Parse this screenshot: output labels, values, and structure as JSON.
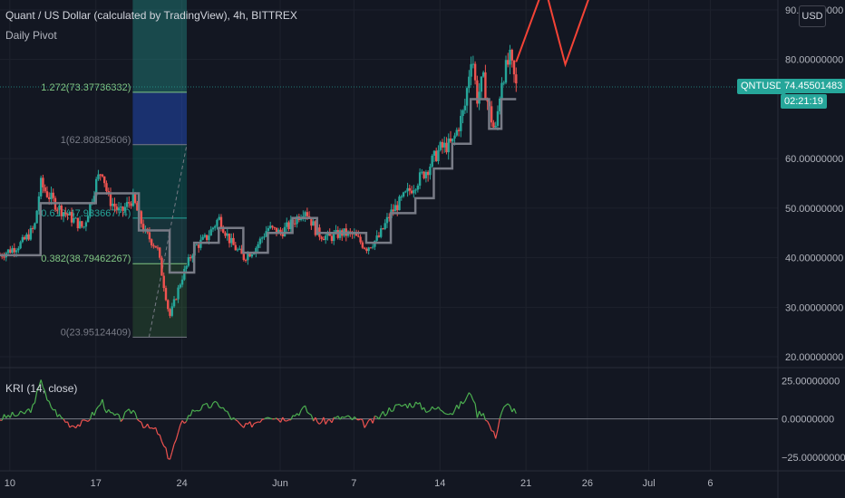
{
  "header": {
    "title": "Quant / US Dollar (calculated by TradingView), 4h, BITTREX",
    "pivot_label": "Daily Pivot",
    "indicator_label": "KRI (14, close)",
    "currency_button": "USD"
  },
  "colors": {
    "background": "#131722",
    "grid": "#1e222d",
    "up": "#26a69a",
    "down": "#ef5350",
    "pivot": "#787b86",
    "projection": "#f44336",
    "kri_up": "#4caf50",
    "kri_down": "#ef5350",
    "text": "#d1d4dc"
  },
  "price_tag": {
    "symbol": "QNTUSD",
    "price": "74.45501483",
    "countdown": "02:21:19"
  },
  "chart_data": [
    {
      "type": "candlestick",
      "title": "Quant / US Dollar (calculated by TradingView), 4h, BITTREX",
      "y_axis": {
        "ticks": [
          "90.00000000",
          "80.00000000",
          "60.00000000",
          "50.00000000",
          "40.00000000",
          "30.00000000",
          "20.00000000"
        ],
        "tick_values": [
          90,
          80,
          60,
          50,
          40,
          30,
          20
        ],
        "range": [
          18,
          92
        ]
      },
      "x_axis": {
        "ticks": [
          "10",
          "17",
          "24",
          "Jun",
          "7",
          "14",
          "21",
          "26",
          "Jul",
          "6"
        ],
        "tick_days": [
          10,
          17,
          24,
          32,
          38,
          45,
          52,
          57,
          62,
          67
        ],
        "range_days": [
          9.2,
          72.5
        ],
        "units": "days since May 1"
      },
      "close_path": [
        [
          9.2,
          40.5
        ],
        [
          10.0,
          41.5
        ],
        [
          11.0,
          43.0
        ],
        [
          12.0,
          46.0
        ],
        [
          12.5,
          55.0
        ],
        [
          13.0,
          53.0
        ],
        [
          14.0,
          50.0
        ],
        [
          15.0,
          48.0
        ],
        [
          16.0,
          46.0
        ],
        [
          17.0,
          55.0
        ],
        [
          17.5,
          58.0
        ],
        [
          18.0,
          52.0
        ],
        [
          19.0,
          49.0
        ],
        [
          20.0,
          52.0
        ],
        [
          21.0,
          45.0
        ],
        [
          22.0,
          42.0
        ],
        [
          22.5,
          35.0
        ],
        [
          23.0,
          28.0
        ],
        [
          24.0,
          36.0
        ],
        [
          25.0,
          42.0
        ],
        [
          26.0,
          44.0
        ],
        [
          27.0,
          48.0
        ],
        [
          28.0,
          43.0
        ],
        [
          29.0,
          40.0
        ],
        [
          30.0,
          42.0
        ],
        [
          31.0,
          46.0
        ],
        [
          32.0,
          45.0
        ],
        [
          33.0,
          47.0
        ],
        [
          34.0,
          50.0
        ],
        [
          35.0,
          45.0
        ],
        [
          36.0,
          44.0
        ],
        [
          37.0,
          45.0
        ],
        [
          38.0,
          44.5
        ],
        [
          39.0,
          42.0
        ],
        [
          40.0,
          44.0
        ],
        [
          41.0,
          49.0
        ],
        [
          42.0,
          52.0
        ],
        [
          43.0,
          55.0
        ],
        [
          44.0,
          58.0
        ],
        [
          45.0,
          62.0
        ],
        [
          46.0,
          63.0
        ],
        [
          47.0,
          70.0
        ],
        [
          47.6,
          82.0
        ],
        [
          48.0,
          72.0
        ],
        [
          48.5,
          76.0
        ],
        [
          49.0,
          70.0
        ],
        [
          49.5,
          65.0
        ],
        [
          50.0,
          76.0
        ],
        [
          50.7,
          80.0
        ],
        [
          51.2,
          74.5
        ]
      ],
      "pivot_path": [
        [
          9.2,
          40.5
        ],
        [
          12.5,
          40.5
        ],
        [
          12.5,
          51.0
        ],
        [
          17.0,
          51.0
        ],
        [
          17.0,
          53.0
        ],
        [
          20.5,
          53.0
        ],
        [
          20.5,
          45.5
        ],
        [
          23.0,
          45.5
        ],
        [
          23.0,
          37.0
        ],
        [
          25.0,
          37.0
        ],
        [
          25.0,
          43.0
        ],
        [
          27.0,
          43.0
        ],
        [
          27.0,
          46.0
        ],
        [
          29.0,
          46.0
        ],
        [
          29.0,
          41.0
        ],
        [
          31.0,
          41.0
        ],
        [
          31.0,
          45.0
        ],
        [
          33.0,
          45.0
        ],
        [
          33.0,
          48.0
        ],
        [
          35.0,
          48.0
        ],
        [
          35.0,
          45.0
        ],
        [
          39.0,
          45.0
        ],
        [
          39.0,
          43.0
        ],
        [
          41.0,
          43.0
        ],
        [
          41.0,
          49.0
        ],
        [
          43.0,
          49.0
        ],
        [
          43.0,
          52.0
        ],
        [
          44.5,
          52.0
        ],
        [
          44.5,
          58.0
        ],
        [
          46.0,
          58.0
        ],
        [
          46.0,
          63.0
        ],
        [
          47.5,
          63.0
        ],
        [
          47.5,
          72.0
        ],
        [
          49.0,
          72.0
        ],
        [
          49.0,
          66.0
        ],
        [
          50.0,
          66.0
        ],
        [
          50.0,
          72.0
        ],
        [
          51.2,
          72.0
        ]
      ],
      "projection_path": [
        [
          51.2,
          79.5
        ],
        [
          53.5,
          95.0
        ],
        [
          55.2,
          79.0
        ],
        [
          57.5,
          95.0
        ]
      ],
      "fibonacci": {
        "x_range_days": [
          20.0,
          24.4
        ],
        "levels": [
          {
            "label": "1.272(73.37736332)",
            "value": 73.37736332
          },
          {
            "label": "1(62.80825606)",
            "value": 62.80825606
          },
          {
            "label": "0.618(47.98366774)",
            "value": 47.98366774
          },
          {
            "label": "0.382(38.79462267)",
            "value": 38.79462267
          },
          {
            "label": "0(23.95124409)",
            "value": 23.95124409
          }
        ],
        "top_value": 96.0
      }
    },
    {
      "type": "line",
      "title": "KRI (14, close)",
      "y_axis": {
        "ticks": [
          "25.00000000",
          "0.00000000",
          "−25.00000000"
        ],
        "tick_values": [
          25,
          0,
          -25
        ],
        "range": [
          -34,
          33
        ]
      },
      "zero_line": 0,
      "points": [
        [
          9.2,
          0
        ],
        [
          10.0,
          2
        ],
        [
          11.0,
          3
        ],
        [
          12.0,
          8
        ],
        [
          12.5,
          28
        ],
        [
          13.0,
          12
        ],
        [
          14.0,
          2
        ],
        [
          15.0,
          -4
        ],
        [
          16.0,
          -3
        ],
        [
          17.0,
          5
        ],
        [
          17.5,
          12
        ],
        [
          18.0,
          4
        ],
        [
          19.0,
          0
        ],
        [
          20.0,
          6
        ],
        [
          21.0,
          -5
        ],
        [
          22.0,
          -8
        ],
        [
          22.5,
          -18
        ],
        [
          23.0,
          -26
        ],
        [
          24.0,
          -3
        ],
        [
          25.0,
          6
        ],
        [
          26.0,
          8
        ],
        [
          27.0,
          10
        ],
        [
          28.0,
          1
        ],
        [
          29.0,
          -6
        ],
        [
          30.0,
          -2
        ],
        [
          31.0,
          3
        ],
        [
          32.0,
          0
        ],
        [
          33.0,
          2
        ],
        [
          34.0,
          7
        ],
        [
          35.0,
          -2
        ],
        [
          36.0,
          -1
        ],
        [
          37.0,
          1
        ],
        [
          38.0,
          0
        ],
        [
          39.0,
          -4
        ],
        [
          40.0,
          1
        ],
        [
          41.0,
          7
        ],
        [
          42.0,
          9
        ],
        [
          43.0,
          10
        ],
        [
          44.0,
          6
        ],
        [
          45.0,
          7
        ],
        [
          46.0,
          4
        ],
        [
          47.0,
          12
        ],
        [
          47.6,
          18
        ],
        [
          48.0,
          3
        ],
        [
          48.5,
          5
        ],
        [
          49.0,
          -4
        ],
        [
          49.5,
          -12
        ],
        [
          50.0,
          5
        ],
        [
          50.5,
          9
        ],
        [
          51.2,
          5
        ]
      ]
    }
  ]
}
